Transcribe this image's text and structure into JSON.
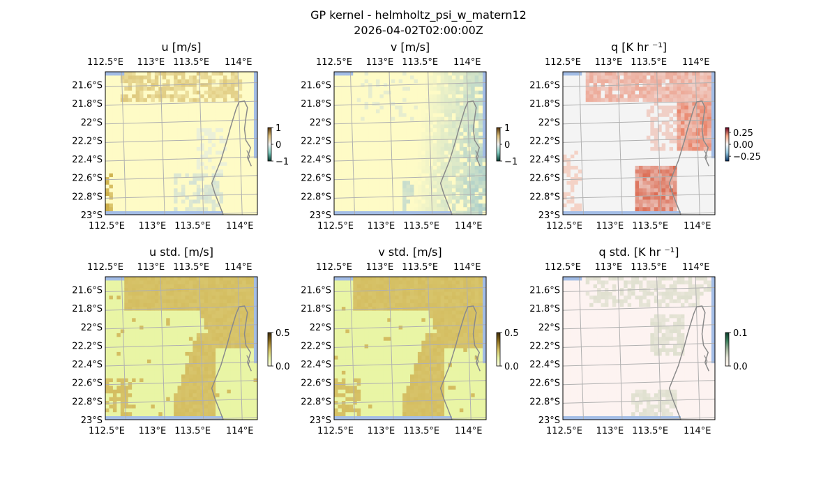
{
  "figure": {
    "title": "GP kernel - helmholtz_psi_w_matern12",
    "subtitle": "2026-04-02T02:00:00Z"
  },
  "chart_data": [
    {
      "type": "heatmap",
      "title": "u [m/s]",
      "colormap": "diverging-brown-teal",
      "colorbar": {
        "ticks": [
          "1",
          "0",
          "−1"
        ],
        "range": [
          -1,
          1
        ]
      },
      "x_ticks": [
        "112.5°E",
        "113°E",
        "113.5°E",
        "114°E"
      ],
      "y_ticks": [
        "21.6°S",
        "21.8°S",
        "22°S",
        "22.2°S",
        "22.4°S",
        "22.6°S",
        "22.8°S",
        "23°S"
      ],
      "x_values": [
        112.5,
        113.0,
        113.5,
        114.0
      ],
      "y_values": [
        -21.6,
        -21.8,
        -22.0,
        -22.2,
        -22.4,
        -22.6,
        -22.8,
        -23.0
      ],
      "xlim": [
        112.5,
        114.2
      ],
      "ylim": [
        -23.0,
        -21.45
      ],
      "grid": true,
      "pattern": "u"
    },
    {
      "type": "heatmap",
      "title": "v [m/s]",
      "colormap": "diverging-brown-teal",
      "colorbar": {
        "ticks": [
          "1",
          "0",
          "−1"
        ],
        "range": [
          -1,
          1
        ]
      },
      "x_ticks": [
        "112.5°E",
        "113°E",
        "113.5°E",
        "114°E"
      ],
      "y_ticks": [
        "21.6°S",
        "21.8°S",
        "22°S",
        "22.2°S",
        "22.4°S",
        "22.6°S",
        "22.8°S",
        "23°S"
      ],
      "x_values": [
        112.5,
        113.0,
        113.5,
        114.0
      ],
      "y_values": [
        -21.6,
        -21.8,
        -22.0,
        -22.2,
        -22.4,
        -22.6,
        -22.8,
        -23.0
      ],
      "xlim": [
        112.5,
        114.2
      ],
      "ylim": [
        -23.0,
        -21.45
      ],
      "grid": true,
      "pattern": "v"
    },
    {
      "type": "heatmap",
      "title": "q [K hr ⁻¹]",
      "colormap": "diverging-blue-red",
      "colorbar": {
        "ticks": [
          "0.25",
          "0.00",
          "−0.25"
        ],
        "range": [
          -0.35,
          0.35
        ]
      },
      "x_ticks": [
        "112.5°E",
        "113°E",
        "113.5°E",
        "114°E"
      ],
      "y_ticks": [
        "21.6°S",
        "21.8°S",
        "22°S",
        "22.2°S",
        "22.4°S",
        "22.6°S",
        "22.8°S",
        "23°S"
      ],
      "x_values": [
        112.5,
        113.0,
        113.5,
        114.0
      ],
      "y_values": [
        -21.6,
        -21.8,
        -22.0,
        -22.2,
        -22.4,
        -22.6,
        -22.8,
        -23.0
      ],
      "xlim": [
        112.5,
        114.2
      ],
      "ylim": [
        -23.0,
        -21.45
      ],
      "grid": true,
      "pattern": "q"
    },
    {
      "type": "heatmap",
      "title": "u std. [m/s]",
      "colormap": "sequential-yellow-olive",
      "colorbar": {
        "ticks": [
          "0.5",
          "0.0"
        ],
        "range": [
          0,
          0.5
        ]
      },
      "x_ticks": [
        "112.5°E",
        "113°E",
        "113.5°E",
        "114°E"
      ],
      "y_ticks": [
        "21.6°S",
        "21.8°S",
        "22°S",
        "22.2°S",
        "22.4°S",
        "22.6°S",
        "22.8°S",
        "23°S"
      ],
      "x_values": [
        112.5,
        113.0,
        113.5,
        114.0
      ],
      "y_values": [
        -21.6,
        -21.8,
        -22.0,
        -22.2,
        -22.4,
        -22.6,
        -22.8,
        -23.0
      ],
      "xlim": [
        112.5,
        114.2
      ],
      "ylim": [
        -23.0,
        -21.45
      ],
      "grid": true,
      "pattern": "std"
    },
    {
      "type": "heatmap",
      "title": "v std. [m/s]",
      "colormap": "sequential-yellow-olive",
      "colorbar": {
        "ticks": [
          "0.5",
          "0.0"
        ],
        "range": [
          0,
          0.5
        ]
      },
      "x_ticks": [
        "112.5°E",
        "113°E",
        "113.5°E",
        "114°E"
      ],
      "y_ticks": [
        "21.6°S",
        "21.8°S",
        "22°S",
        "22.2°S",
        "22.4°S",
        "22.6°S",
        "22.8°S",
        "23°S"
      ],
      "x_values": [
        112.5,
        113.0,
        113.5,
        114.0
      ],
      "y_values": [
        -21.6,
        -21.8,
        -22.0,
        -22.2,
        -22.4,
        -22.6,
        -22.8,
        -23.0
      ],
      "xlim": [
        112.5,
        114.2
      ],
      "ylim": [
        -23.0,
        -21.45
      ],
      "grid": true,
      "pattern": "std"
    },
    {
      "type": "heatmap",
      "title": "q std. [K hr ⁻¹]",
      "colormap": "sequential-pink-grey",
      "colorbar": {
        "ticks": [
          "0.1",
          "0.0"
        ],
        "range": [
          0,
          0.1
        ]
      },
      "x_ticks": [
        "112.5°E",
        "113°E",
        "113.5°E",
        "114°E"
      ],
      "y_ticks": [
        "21.6°S",
        "21.8°S",
        "22°S",
        "22.2°S",
        "22.4°S",
        "22.6°S",
        "22.8°S",
        "23°S"
      ],
      "x_values": [
        112.5,
        113.0,
        113.5,
        114.0
      ],
      "y_values": [
        -21.6,
        -21.8,
        -22.0,
        -22.2,
        -22.4,
        -22.6,
        -22.8,
        -23.0
      ],
      "xlim": [
        112.5,
        114.2
      ],
      "ylim": [
        -23.0,
        -21.45
      ],
      "grid": true,
      "pattern": "qstd"
    }
  ],
  "colors": {
    "ocean": "#a3bde6",
    "coastline": "#8a8a8a",
    "grid": "#b0b0b0",
    "u_base": "#fefbc6",
    "std_base": "#e9f5a5",
    "std_high": "#d4bd60",
    "q_base": "#f4f4f4",
    "q_pos": "#e8775a",
    "qstd_base": "#fdf3f1",
    "qstd_high": "#dfe0cf"
  }
}
